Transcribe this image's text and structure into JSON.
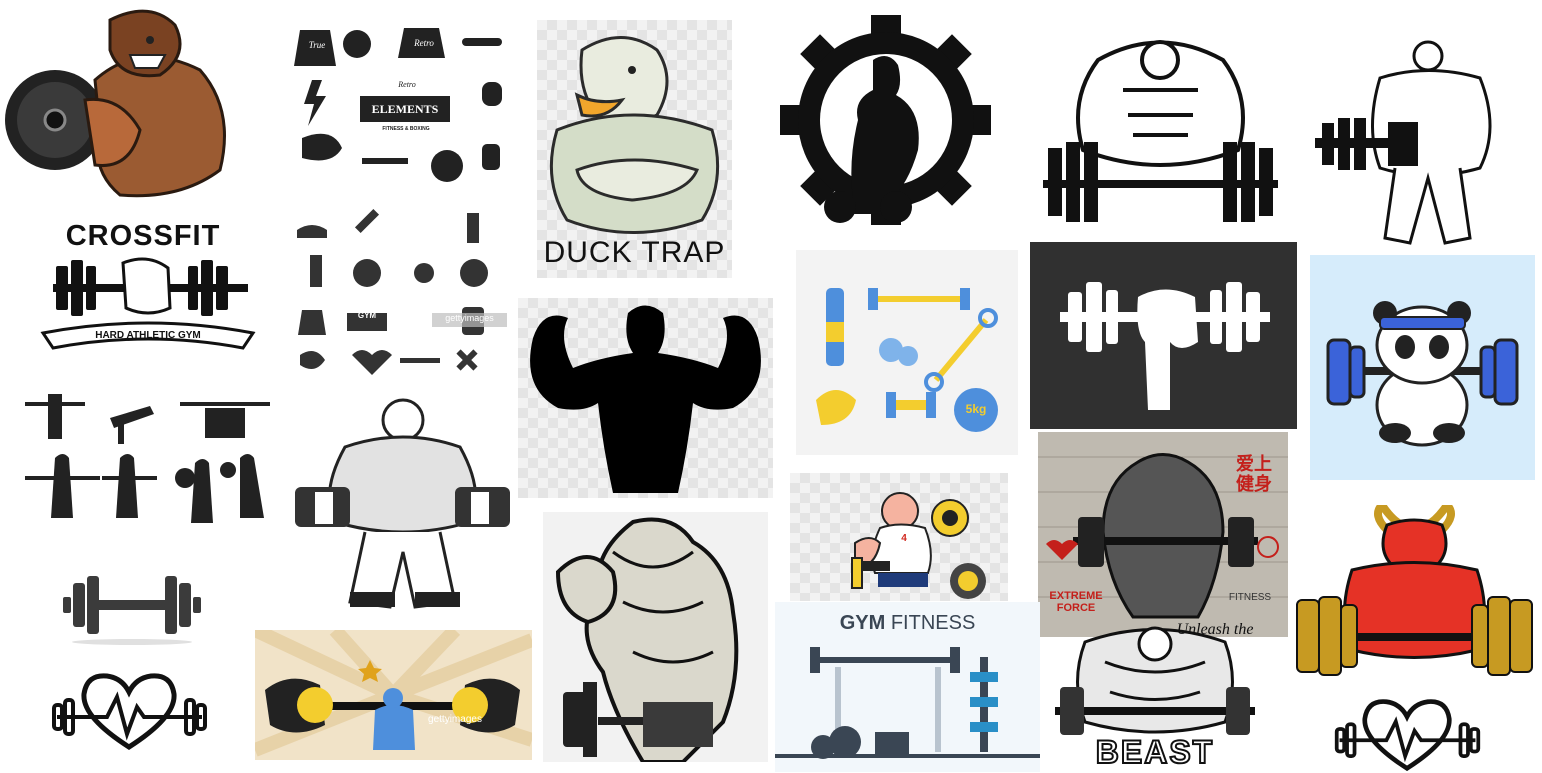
{
  "images": [
    {
      "name": "pitbull-bodybuilder-plate"
    },
    {
      "name": "retro-elements-icon-sheet",
      "labels": {
        "true": "True",
        "retro": "Retro",
        "elements_top": "Retro",
        "elements": "ELEMENTS",
        "elements_sub": "FITNESS & BOXING"
      }
    },
    {
      "name": "duck-trap-mascot",
      "caption": "DUCK TRAP"
    },
    {
      "name": "gear-dumbbell-silhouette"
    },
    {
      "name": "muscleman-barbell-lift"
    },
    {
      "name": "bodybuilder-sketch-dumbbell"
    },
    {
      "name": "crossfit-emblem",
      "title": "CROSSFIT",
      "ribbon": "HARD ATHLETIC GYM"
    },
    {
      "name": "gym-icon-grid",
      "gym_label": "GYM",
      "watermark": "gettyimages"
    },
    {
      "name": "flexing-silhouette"
    },
    {
      "name": "fitness-equipment-flat",
      "kettlebell_label": "5kg"
    },
    {
      "name": "fist-barbell-dark"
    },
    {
      "name": "panda-barbell-cartoon"
    },
    {
      "name": "gym-equipment-silhouettes"
    },
    {
      "name": "muscleman-dumbbells-sketch"
    },
    {
      "name": "bodybuilder-vintage-drawing"
    },
    {
      "name": "cartoon-weightlifter",
      "plate_label": "4"
    },
    {
      "name": "extreme-force-poster",
      "chinese_title": "爱上健身",
      "bottom_left": "EXTREME FORCE",
      "bottom_right": "FITNESS"
    },
    {
      "name": "bull-mascot-barbell"
    },
    {
      "name": "dumbbell-icon"
    },
    {
      "name": "heart-barbell-icon-left"
    },
    {
      "name": "strongman-cartoon",
      "watermark": "gettyimages"
    },
    {
      "name": "gym-fitness-flat",
      "title_bold": "GYM",
      "title_light": "FITNESS"
    },
    {
      "name": "unleash-beast-tattoo",
      "top": "Unleash the",
      "bottom": "BEAST"
    },
    {
      "name": "heart-barbell-icon-right"
    }
  ],
  "colors": {
    "ink": "#111111",
    "red": "#d0261d",
    "gold": "#c79a22",
    "blue": "#3b63d9",
    "yellow": "#f3cd2e",
    "sky": "#d6ecfb"
  }
}
